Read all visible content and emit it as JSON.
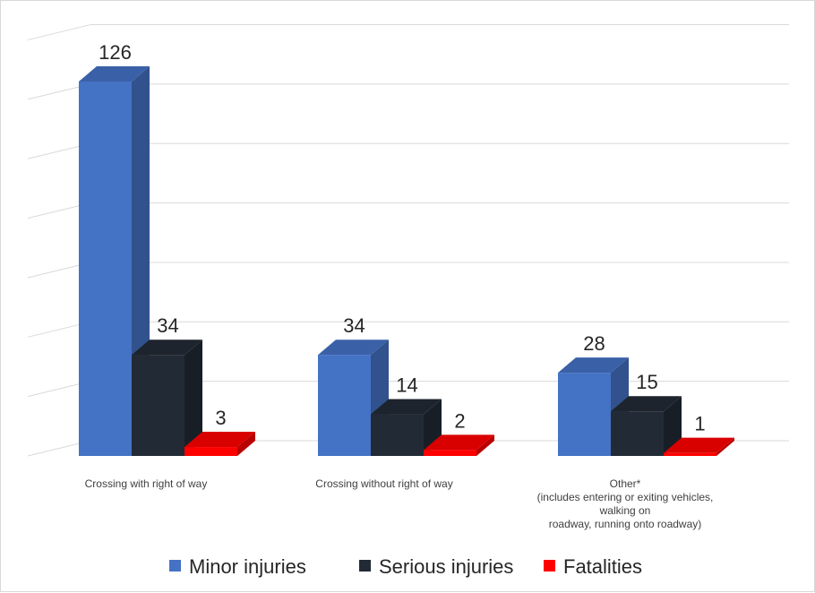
{
  "chart_data": {
    "type": "bar",
    "categories": [
      [
        "Crossing with right of way"
      ],
      [
        "Crossing without right of way"
      ],
      [
        "Other*",
        "(includes entering or exiting vehicles,",
        "walking on",
        "roadway,  running onto  roadway)"
      ]
    ],
    "series": [
      {
        "name": "Minor injuries",
        "values": [
          126,
          34,
          28
        ],
        "color": "#4472c4"
      },
      {
        "name": "Serious injuries",
        "values": [
          34,
          14,
          15
        ],
        "color": "#222a35"
      },
      {
        "name": "Fatalities",
        "values": [
          3,
          2,
          1
        ],
        "color": "#ff0000"
      }
    ],
    "ylim": [
      0,
      140
    ],
    "grid": true,
    "legend_position": "bottom",
    "style": "3d-clustered-column"
  }
}
